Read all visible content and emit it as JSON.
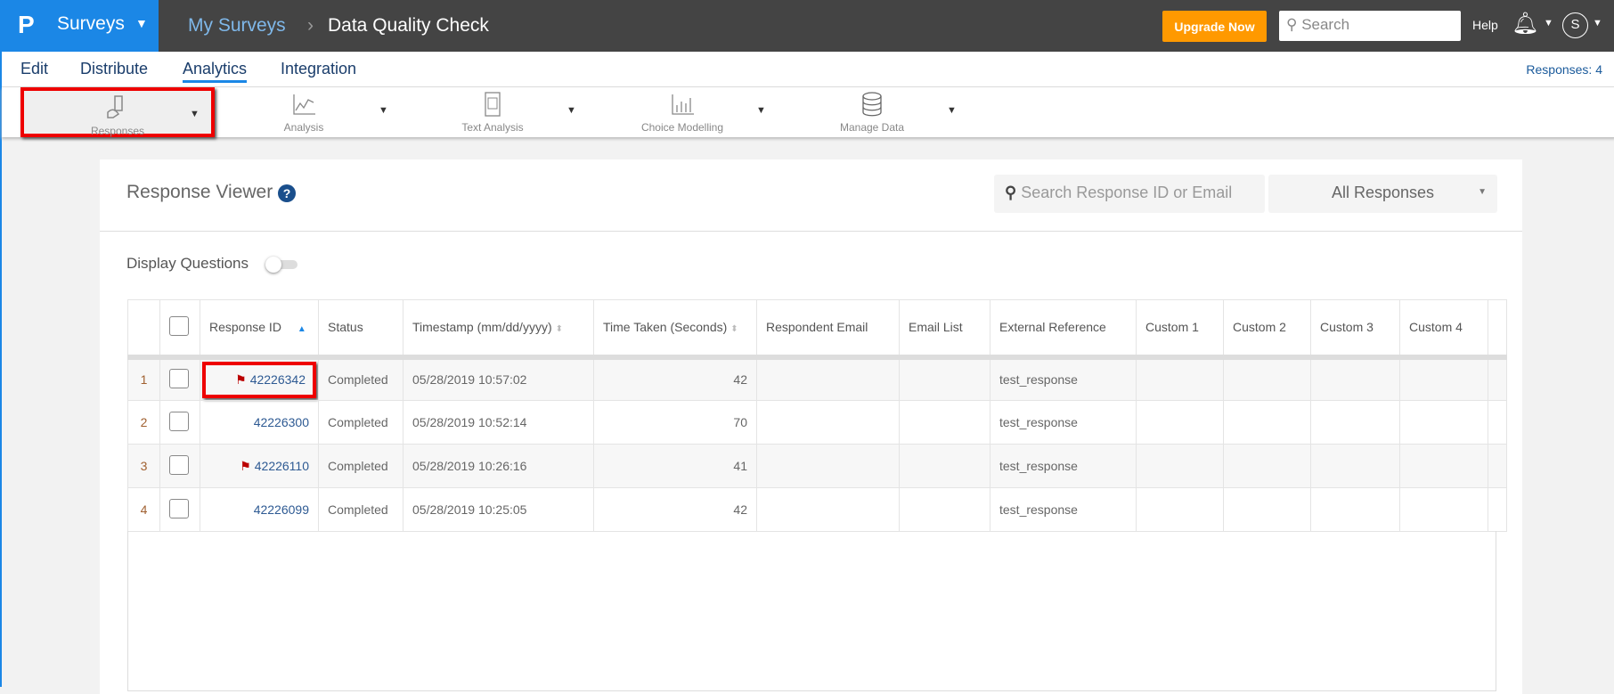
{
  "topbar": {
    "app": "Surveys",
    "breadcrumb": [
      "My Surveys",
      "Data Quality Check"
    ],
    "upgrade": "Upgrade Now",
    "search_placeholder": "Search",
    "help": "Help",
    "avatar": "S"
  },
  "nav": {
    "items": [
      "Edit",
      "Distribute",
      "Analytics",
      "Integration"
    ],
    "active": "Analytics",
    "responses_count": "Responses: 4"
  },
  "toolbar": {
    "items": [
      "Responses",
      "Analysis",
      "Text Analysis",
      "Choice Modelling",
      "Manage Data"
    ],
    "active": "Responses"
  },
  "viewer": {
    "title": "Response Viewer",
    "search_placeholder": "Search Response ID or Email",
    "filter": "All Responses",
    "display_questions": "Display Questions",
    "display_questions_on": false
  },
  "table": {
    "headers": [
      "Response ID",
      "Status",
      "Timestamp (mm/dd/yyyy)",
      "Time Taken (Seconds)",
      "Respondent Email",
      "Email List",
      "External Reference",
      "Custom 1",
      "Custom 2",
      "Custom 3",
      "Custom 4"
    ],
    "rows": [
      {
        "n": "1",
        "id": "42226342",
        "flag": true,
        "status": "Completed",
        "ts": "05/28/2019 10:57:02",
        "time": "42",
        "ext": "test_response"
      },
      {
        "n": "2",
        "id": "42226300",
        "flag": false,
        "status": "Completed",
        "ts": "05/28/2019 10:52:14",
        "time": "70",
        "ext": "test_response"
      },
      {
        "n": "3",
        "id": "42226110",
        "flag": true,
        "status": "Completed",
        "ts": "05/28/2019 10:26:16",
        "time": "41",
        "ext": "test_response"
      },
      {
        "n": "4",
        "id": "42226099",
        "flag": false,
        "status": "Completed",
        "ts": "05/28/2019 10:25:05",
        "time": "42",
        "ext": "test_response"
      }
    ]
  },
  "colors": {
    "brand": "#1b87e6",
    "upgrade": "#ff9900",
    "highlight": "#ee0000",
    "flag": "#bb0000"
  }
}
